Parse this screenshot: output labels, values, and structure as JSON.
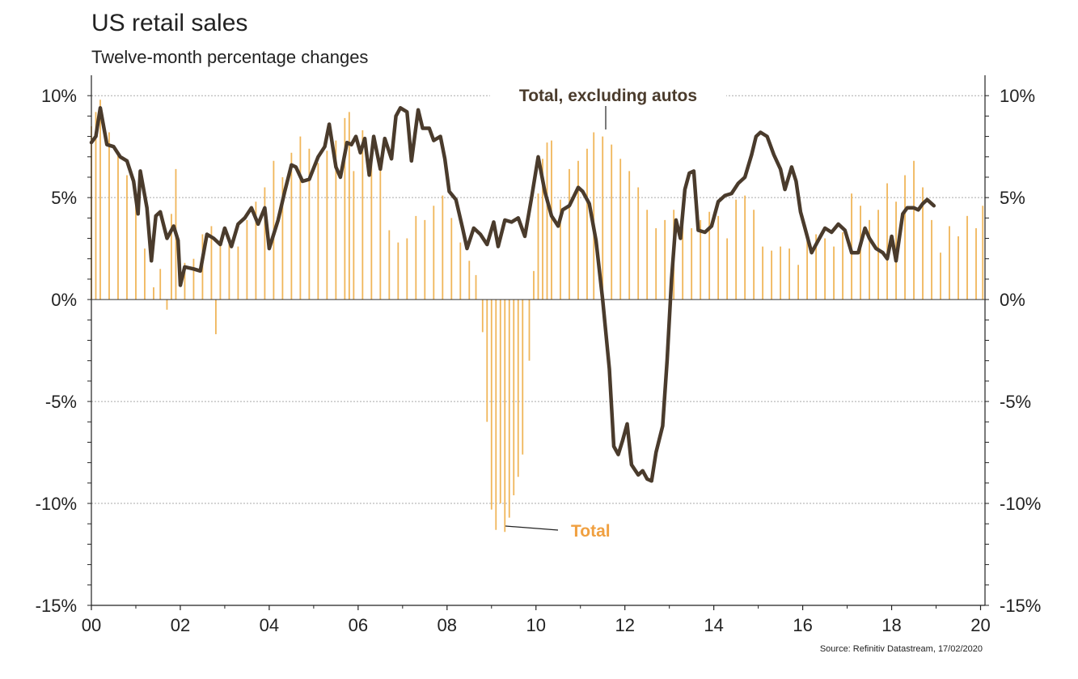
{
  "chart_data": {
    "type": "bar+line",
    "title": "US retail sales",
    "subtitle": "Twelve-month percentage changes",
    "source": "Source: Refinitiv Datastream, 17/02/2020",
    "x_ticks": [
      "00",
      "02",
      "04",
      "06",
      "08",
      "10",
      "12",
      "14",
      "16",
      "18",
      "20"
    ],
    "xlim": [
      2000.0,
      2020.1
    ],
    "y_ticks": [
      "10%",
      "5%",
      "0%",
      "-5%",
      "-10%",
      "-15%"
    ],
    "ylim": [
      -15,
      10
    ],
    "grid": true,
    "annotations": {
      "line_label": "Total, excluding autos",
      "bar_label": "Total"
    },
    "colors": {
      "bars": "#f0b65a",
      "line": "#4a3b2c",
      "axis": "#222222",
      "grid": "#aaaaaa"
    },
    "series": [
      {
        "name": "Total",
        "type": "bar",
        "points": [
          [
            2000.0,
            8.5
          ],
          [
            2000.1,
            9.2
          ],
          [
            2000.2,
            9.8
          ],
          [
            2000.4,
            8.2
          ],
          [
            2000.6,
            7.2
          ],
          [
            2000.8,
            6.1
          ],
          [
            2001.0,
            4.8
          ],
          [
            2001.2,
            2.5
          ],
          [
            2001.4,
            0.6
          ],
          [
            2001.55,
            1.5
          ],
          [
            2001.7,
            -0.5
          ],
          [
            2001.8,
            4.2
          ],
          [
            2001.9,
            6.4
          ],
          [
            2002.1,
            1.8
          ],
          [
            2002.3,
            2.0
          ],
          [
            2002.5,
            3.2
          ],
          [
            2002.7,
            3.6
          ],
          [
            2002.8,
            -1.7
          ],
          [
            2002.9,
            2.9
          ],
          [
            2003.1,
            3.0
          ],
          [
            2003.3,
            2.6
          ],
          [
            2003.5,
            3.9
          ],
          [
            2003.7,
            4.8
          ],
          [
            2003.9,
            5.5
          ],
          [
            2004.1,
            6.8
          ],
          [
            2004.3,
            6.0
          ],
          [
            2004.5,
            7.2
          ],
          [
            2004.7,
            8.0
          ],
          [
            2004.9,
            7.4
          ],
          [
            2005.1,
            6.7
          ],
          [
            2005.3,
            7.3
          ],
          [
            2005.5,
            7.8
          ],
          [
            2005.7,
            8.9
          ],
          [
            2005.8,
            9.2
          ],
          [
            2005.9,
            6.3
          ],
          [
            2006.1,
            8.3
          ],
          [
            2006.3,
            6.9
          ],
          [
            2006.5,
            6.4
          ],
          [
            2006.7,
            3.4
          ],
          [
            2006.9,
            2.8
          ],
          [
            2007.1,
            3.0
          ],
          [
            2007.3,
            4.1
          ],
          [
            2007.5,
            3.9
          ],
          [
            2007.7,
            4.6
          ],
          [
            2007.9,
            5.1
          ],
          [
            2008.1,
            4.0
          ],
          [
            2008.3,
            2.8
          ],
          [
            2008.5,
            1.9
          ],
          [
            2008.65,
            1.2
          ],
          [
            2008.8,
            -1.6
          ],
          [
            2008.9,
            -6.0
          ],
          [
            2009.0,
            -10.3
          ],
          [
            2009.1,
            -11.3
          ],
          [
            2009.2,
            -10.0
          ],
          [
            2009.3,
            -11.4
          ],
          [
            2009.4,
            -10.7
          ],
          [
            2009.5,
            -9.6
          ],
          [
            2009.6,
            -8.7
          ],
          [
            2009.7,
            -7.6
          ],
          [
            2009.85,
            -3.0
          ],
          [
            2009.95,
            1.4
          ],
          [
            2010.05,
            5.2
          ],
          [
            2010.15,
            6.9
          ],
          [
            2010.25,
            7.7
          ],
          [
            2010.35,
            7.8
          ],
          [
            2010.55,
            4.9
          ],
          [
            2010.75,
            6.4
          ],
          [
            2010.95,
            6.8
          ],
          [
            2011.15,
            7.4
          ],
          [
            2011.3,
            8.2
          ],
          [
            2011.5,
            8.0
          ],
          [
            2011.7,
            7.6
          ],
          [
            2011.9,
            6.9
          ],
          [
            2012.1,
            6.3
          ],
          [
            2012.3,
            5.5
          ],
          [
            2012.5,
            4.4
          ],
          [
            2012.7,
            3.5
          ],
          [
            2012.9,
            3.9
          ],
          [
            2013.1,
            4.4
          ],
          [
            2013.3,
            4.1
          ],
          [
            2013.5,
            3.5
          ],
          [
            2013.7,
            3.9
          ],
          [
            2013.9,
            4.3
          ],
          [
            2014.1,
            4.1
          ],
          [
            2014.3,
            3.0
          ],
          [
            2014.5,
            4.9
          ],
          [
            2014.7,
            5.1
          ],
          [
            2014.9,
            4.4
          ],
          [
            2015.1,
            2.6
          ],
          [
            2015.3,
            2.4
          ],
          [
            2015.5,
            2.6
          ],
          [
            2015.7,
            2.5
          ],
          [
            2015.9,
            1.7
          ],
          [
            2016.1,
            2.9
          ],
          [
            2016.3,
            3.2
          ],
          [
            2016.5,
            3.0
          ],
          [
            2016.7,
            2.6
          ],
          [
            2016.9,
            3.3
          ],
          [
            2017.1,
            5.2
          ],
          [
            2017.3,
            4.6
          ],
          [
            2017.5,
            3.9
          ],
          [
            2017.7,
            4.4
          ],
          [
            2017.9,
            5.7
          ],
          [
            2018.1,
            4.8
          ],
          [
            2018.3,
            6.1
          ],
          [
            2018.5,
            6.8
          ],
          [
            2018.7,
            5.5
          ],
          [
            2018.9,
            3.9
          ],
          [
            2019.1,
            2.3
          ],
          [
            2019.3,
            3.6
          ],
          [
            2019.5,
            3.1
          ],
          [
            2019.7,
            4.1
          ],
          [
            2019.9,
            3.5
          ],
          [
            2020.05,
            4.6
          ]
        ]
      },
      {
        "name": "Total, excluding autos",
        "type": "line",
        "points": [
          [
            2000.0,
            7.7
          ],
          [
            2000.1,
            8.0
          ],
          [
            2000.2,
            9.4
          ],
          [
            2000.35,
            7.6
          ],
          [
            2000.5,
            7.5
          ],
          [
            2000.65,
            7.0
          ],
          [
            2000.8,
            6.8
          ],
          [
            2000.95,
            5.8
          ],
          [
            2001.05,
            4.2
          ],
          [
            2001.1,
            6.3
          ],
          [
            2001.25,
            4.5
          ],
          [
            2001.35,
            1.9
          ],
          [
            2001.45,
            4.1
          ],
          [
            2001.55,
            4.3
          ],
          [
            2001.7,
            3.0
          ],
          [
            2001.85,
            3.6
          ],
          [
            2001.95,
            2.9
          ],
          [
            2002.0,
            0.7
          ],
          [
            2002.1,
            1.6
          ],
          [
            2002.3,
            1.5
          ],
          [
            2002.45,
            1.4
          ],
          [
            2002.6,
            3.2
          ],
          [
            2002.75,
            3.0
          ],
          [
            2002.9,
            2.7
          ],
          [
            2003.0,
            3.5
          ],
          [
            2003.15,
            2.6
          ],
          [
            2003.3,
            3.7
          ],
          [
            2003.45,
            4.0
          ],
          [
            2003.6,
            4.5
          ],
          [
            2003.75,
            3.7
          ],
          [
            2003.9,
            4.5
          ],
          [
            2004.0,
            2.5
          ],
          [
            2004.2,
            3.9
          ],
          [
            2004.35,
            5.3
          ],
          [
            2004.5,
            6.6
          ],
          [
            2004.6,
            6.5
          ],
          [
            2004.75,
            5.8
          ],
          [
            2004.9,
            5.9
          ],
          [
            2005.1,
            7.0
          ],
          [
            2005.25,
            7.5
          ],
          [
            2005.35,
            8.6
          ],
          [
            2005.5,
            6.5
          ],
          [
            2005.6,
            6.0
          ],
          [
            2005.75,
            7.7
          ],
          [
            2005.85,
            7.6
          ],
          [
            2005.95,
            8.0
          ],
          [
            2006.05,
            7.2
          ],
          [
            2006.15,
            7.9
          ],
          [
            2006.25,
            6.1
          ],
          [
            2006.35,
            8.0
          ],
          [
            2006.5,
            6.4
          ],
          [
            2006.6,
            7.9
          ],
          [
            2006.75,
            6.9
          ],
          [
            2006.85,
            9.0
          ],
          [
            2006.95,
            9.4
          ],
          [
            2007.1,
            9.2
          ],
          [
            2007.2,
            6.8
          ],
          [
            2007.35,
            9.3
          ],
          [
            2007.45,
            8.4
          ],
          [
            2007.6,
            8.4
          ],
          [
            2007.7,
            7.8
          ],
          [
            2007.85,
            8.0
          ],
          [
            2007.95,
            6.9
          ],
          [
            2008.05,
            5.3
          ],
          [
            2008.2,
            4.9
          ],
          [
            2008.35,
            3.5
          ],
          [
            2008.45,
            2.5
          ],
          [
            2008.6,
            3.5
          ],
          [
            2008.75,
            3.2
          ],
          [
            2008.9,
            2.7
          ],
          [
            2009.05,
            3.8
          ],
          [
            2009.15,
            2.6
          ],
          [
            2009.3,
            3.9
          ],
          [
            2009.45,
            3.8
          ],
          [
            2009.6,
            4.0
          ],
          [
            2009.75,
            3.1
          ],
          [
            2009.9,
            5.0
          ],
          [
            2010.05,
            7.0
          ],
          [
            2010.2,
            5.3
          ],
          [
            2010.35,
            4.1
          ],
          [
            2010.5,
            3.6
          ],
          [
            2010.6,
            4.4
          ],
          [
            2010.75,
            4.6
          ],
          [
            2010.95,
            5.5
          ],
          [
            2011.05,
            5.3
          ],
          [
            2011.2,
            4.7
          ],
          [
            2011.35,
            2.9
          ],
          [
            2011.5,
            0.0
          ],
          [
            2011.65,
            -3.4
          ],
          [
            2011.75,
            -7.2
          ],
          [
            2011.85,
            -7.6
          ],
          [
            2011.95,
            -6.9
          ],
          [
            2012.05,
            -6.1
          ],
          [
            2012.15,
            -8.1
          ],
          [
            2012.3,
            -8.6
          ],
          [
            2012.4,
            -8.4
          ],
          [
            2012.5,
            -8.8
          ],
          [
            2012.6,
            -8.9
          ],
          [
            2012.7,
            -7.5
          ],
          [
            2012.85,
            -6.2
          ],
          [
            2012.95,
            -3.0
          ],
          [
            2013.05,
            1.0
          ],
          [
            2013.15,
            3.9
          ],
          [
            2013.25,
            3.0
          ],
          [
            2013.35,
            5.4
          ],
          [
            2013.45,
            6.2
          ],
          [
            2013.55,
            6.3
          ],
          [
            2013.65,
            3.4
          ],
          [
            2013.8,
            3.3
          ],
          [
            2013.95,
            3.6
          ],
          [
            2014.1,
            4.8
          ],
          [
            2014.25,
            5.1
          ],
          [
            2014.4,
            5.2
          ],
          [
            2014.55,
            5.7
          ],
          [
            2014.7,
            6.0
          ],
          [
            2014.85,
            7.1
          ],
          [
            2014.95,
            8.0
          ],
          [
            2015.05,
            8.2
          ],
          [
            2015.2,
            8.0
          ],
          [
            2015.35,
            7.1
          ],
          [
            2015.5,
            6.4
          ],
          [
            2015.6,
            5.4
          ],
          [
            2015.75,
            6.5
          ],
          [
            2015.85,
            5.8
          ],
          [
            2015.95,
            4.3
          ],
          [
            2016.05,
            3.5
          ],
          [
            2016.2,
            2.3
          ],
          [
            2016.35,
            2.9
          ],
          [
            2016.5,
            3.5
          ],
          [
            2016.65,
            3.3
          ],
          [
            2016.8,
            3.7
          ],
          [
            2016.95,
            3.4
          ],
          [
            2017.1,
            2.3
          ],
          [
            2017.25,
            2.3
          ],
          [
            2017.4,
            3.5
          ],
          [
            2017.5,
            3.0
          ],
          [
            2017.65,
            2.5
          ],
          [
            2017.8,
            2.3
          ],
          [
            2017.9,
            2.0
          ],
          [
            2018.0,
            3.1
          ],
          [
            2018.1,
            1.9
          ],
          [
            2018.25,
            4.2
          ],
          [
            2018.35,
            4.5
          ],
          [
            2018.5,
            4.5
          ],
          [
            2018.6,
            4.4
          ],
          [
            2018.7,
            4.7
          ],
          [
            2018.8,
            4.9
          ],
          [
            2018.95,
            4.6
          ]
        ]
      }
    ]
  }
}
